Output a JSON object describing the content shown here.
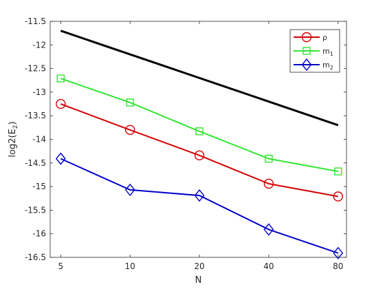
{
  "chart_data": {
    "type": "line",
    "title": "",
    "xlabel": "N",
    "ylabel_main": "log2(E",
    "ylabel_sub": "2",
    "ylabel_close": ")",
    "x": [
      5,
      10,
      20,
      40,
      80
    ],
    "x_tick_labels": [
      "5",
      "10",
      "20",
      "40",
      "80"
    ],
    "x_scale": "log2",
    "xlim": [
      4.5,
      87
    ],
    "ylim": [
      -16.5,
      -11.5
    ],
    "y_ticks": [
      -16.5,
      -16,
      -15.5,
      -15,
      -14.5,
      -14,
      -13.5,
      -13,
      -12.5,
      -12,
      -11.5
    ],
    "y_tick_labels": [
      "-16.5",
      "-16",
      "-15.5",
      "-15",
      "-14.5",
      "-14",
      "-13.5",
      "-13",
      "-12.5",
      "-12",
      "-11.5"
    ],
    "grid": false,
    "legend_position": "top-right",
    "series": [
      {
        "name": "ρ",
        "name_sub": "",
        "color": "#d40000",
        "marker": "circle",
        "values": [
          -13.25,
          -13.8,
          -14.34,
          -14.94,
          -15.21
        ]
      },
      {
        "name": "m",
        "name_sub": "1",
        "color": "#33e633",
        "marker": "square",
        "values": [
          -12.71,
          -13.22,
          -13.83,
          -14.41,
          -14.68
        ]
      },
      {
        "name": "m",
        "name_sub": "2",
        "color": "#0000c8",
        "marker": "diamond",
        "values": [
          -14.41,
          -15.07,
          -15.19,
          -15.91,
          -16.41
        ]
      }
    ],
    "reference_line": {
      "color": "#000000",
      "values": [
        -11.7,
        -13.7
      ]
    }
  }
}
